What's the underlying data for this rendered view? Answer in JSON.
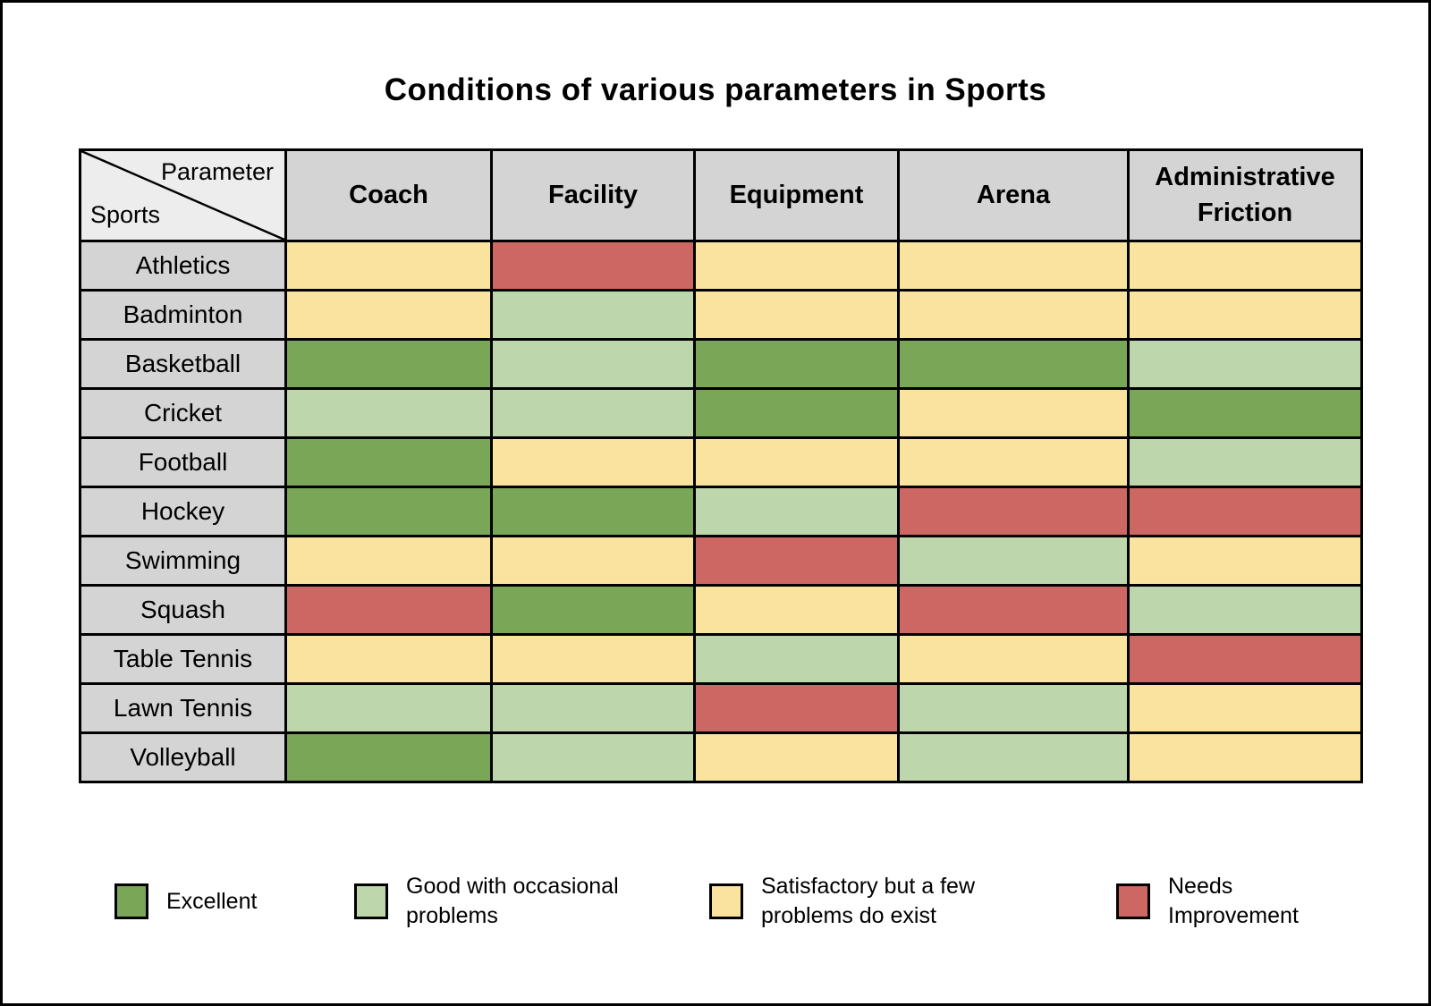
{
  "title": "Conditions of various parameters in Sports",
  "table": {
    "corner": {
      "top_label": "Parameter",
      "bottom_label": "Sports"
    }
  },
  "chart_data": {
    "type": "heatmap",
    "title": "Conditions of various parameters in Sports",
    "x_categories": [
      "Coach",
      "Facility",
      "Equipment",
      "Arena",
      "Administrative Friction"
    ],
    "y_categories": [
      "Athletics",
      "Badminton",
      "Basketball",
      "Cricket",
      "Football",
      "Hockey",
      "Swimming",
      "Squash",
      "Table Tennis",
      "Lawn Tennis",
      "Volleyball"
    ],
    "values": [
      [
        "satisfactory",
        "needs_improvement",
        "satisfactory",
        "satisfactory",
        "satisfactory"
      ],
      [
        "satisfactory",
        "good",
        "satisfactory",
        "satisfactory",
        "satisfactory"
      ],
      [
        "excellent",
        "good",
        "excellent",
        "excellent",
        "good"
      ],
      [
        "good",
        "good",
        "excellent",
        "satisfactory",
        "excellent"
      ],
      [
        "excellent",
        "satisfactory",
        "satisfactory",
        "satisfactory",
        "good"
      ],
      [
        "excellent",
        "excellent",
        "good",
        "needs_improvement",
        "needs_improvement"
      ],
      [
        "satisfactory",
        "satisfactory",
        "needs_improvement",
        "good",
        "satisfactory"
      ],
      [
        "needs_improvement",
        "excellent",
        "satisfactory",
        "needs_improvement",
        "good"
      ],
      [
        "satisfactory",
        "satisfactory",
        "good",
        "satisfactory",
        "needs_improvement"
      ],
      [
        "good",
        "good",
        "needs_improvement",
        "good",
        "satisfactory"
      ],
      [
        "excellent",
        "good",
        "satisfactory",
        "good",
        "satisfactory"
      ]
    ],
    "legend": [
      {
        "value": "excellent",
        "label": "Excellent",
        "color": "#7AA657"
      },
      {
        "value": "good",
        "label": "Good with occasional problems",
        "color": "#BED6AC"
      },
      {
        "value": "satisfactory",
        "label": "Satisfactory but a few problems do exist",
        "color": "#FAE39E"
      },
      {
        "value": "needs_improvement",
        "label": "Needs Improvement",
        "color": "#CD6763"
      }
    ],
    "legend_position": "bottom",
    "header_bg": "#D4D4D4",
    "corner_bg": "#EDEDED",
    "grid_color": "#000000"
  }
}
